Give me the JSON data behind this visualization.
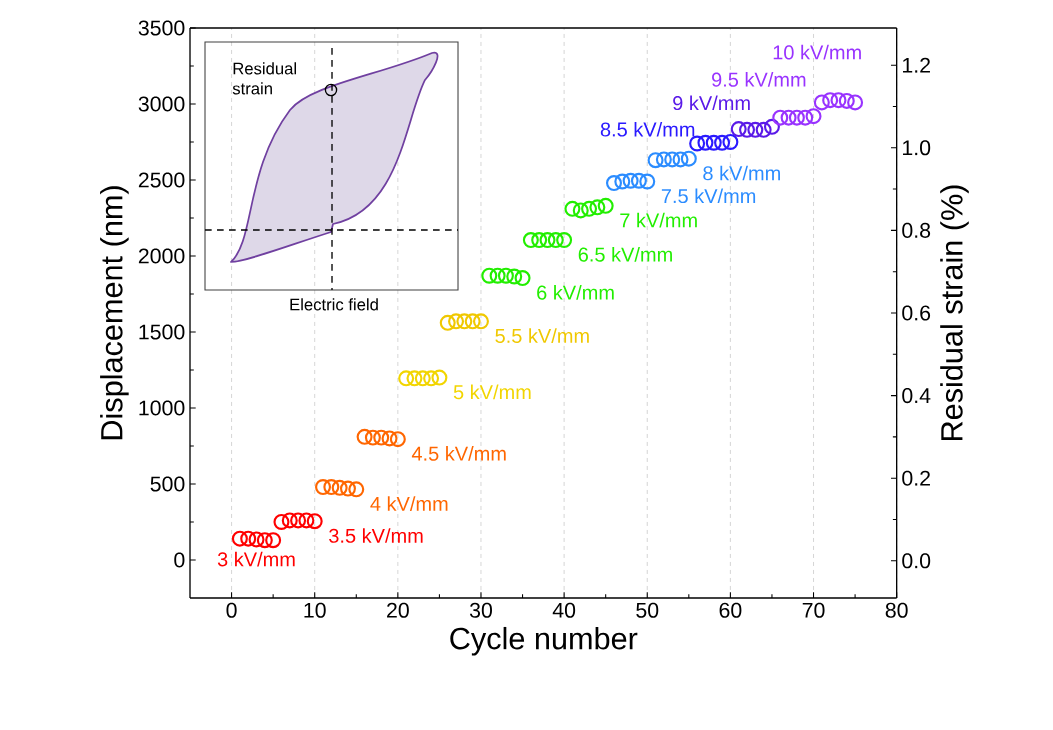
{
  "chart_data": {
    "type": "scatter",
    "xlabel": "Cycle number",
    "ylabel": "Displacement (nm)",
    "y2label": "Residual strain (%)",
    "xlim": [
      -5,
      80
    ],
    "xticks": [
      0,
      10,
      20,
      30,
      40,
      50,
      60,
      70,
      80
    ],
    "ylim": [
      -250,
      3500
    ],
    "yticks": [
      0,
      500,
      1000,
      1500,
      2000,
      2500,
      3000,
      3500
    ],
    "y2lim": [
      -0.09,
      1.29
    ],
    "y2ticks": [
      {
        "value": 0,
        "label": "0.0"
      },
      {
        "value": 0.2,
        "label": "0.2"
      },
      {
        "value": 0.4,
        "label": "0.4"
      },
      {
        "value": 0.6,
        "label": "0.6"
      },
      {
        "value": 0.8,
        "label": "0.8"
      },
      {
        "value": 1.0,
        "label": "1.0"
      },
      {
        "value": 1.2,
        "label": "1.2"
      }
    ],
    "grid": "x",
    "legend": false,
    "marker": "circle",
    "annotations": [
      "Residual strain",
      "Electric field"
    ],
    "series": [
      {
        "name": "3 kV/mm",
        "color": "#ff0000",
        "x": [
          1,
          2,
          3,
          4,
          5
        ],
        "values": [
          140,
          140,
          135,
          130,
          130
        ]
      },
      {
        "name": "3.5 kV/mm",
        "color": "#ff0000",
        "x": [
          6,
          7,
          8,
          9,
          10
        ],
        "values": [
          250,
          260,
          260,
          260,
          255
        ]
      },
      {
        "name": "4 kV/mm",
        "color": "#ff6600",
        "x": [
          11,
          12,
          13,
          14,
          15
        ],
        "values": [
          480,
          480,
          475,
          470,
          465
        ]
      },
      {
        "name": "4.5 kV/mm",
        "color": "#ff6600",
        "x": [
          16,
          17,
          18,
          19,
          20
        ],
        "values": [
          810,
          805,
          805,
          800,
          795
        ]
      },
      {
        "name": "5 kV/mm",
        "color": "#f2d500",
        "x": [
          21,
          22,
          23,
          24,
          25
        ],
        "values": [
          1195,
          1195,
          1195,
          1195,
          1200
        ]
      },
      {
        "name": "5.5 kV/mm",
        "color": "#f0c800",
        "x": [
          26,
          27,
          28,
          29,
          30
        ],
        "values": [
          1560,
          1570,
          1570,
          1570,
          1570
        ]
      },
      {
        "name": "6 kV/mm",
        "color": "#22ee00",
        "x": [
          31,
          32,
          33,
          34,
          35
        ],
        "values": [
          1870,
          1870,
          1870,
          1865,
          1855
        ]
      },
      {
        "name": "6.5 kV/mm",
        "color": "#22ee00",
        "x": [
          36,
          37,
          38,
          39,
          40
        ],
        "values": [
          2105,
          2105,
          2105,
          2105,
          2105
        ]
      },
      {
        "name": "7 kV/mm",
        "color": "#22ee00",
        "x": [
          41,
          42,
          43,
          44,
          45
        ],
        "values": [
          2310,
          2300,
          2310,
          2320,
          2330
        ]
      },
      {
        "name": "7.5 kV/mm",
        "color": "#2b8cff",
        "x": [
          46,
          47,
          48,
          49,
          50
        ],
        "values": [
          2480,
          2490,
          2495,
          2495,
          2490
        ]
      },
      {
        "name": "8 kV/mm",
        "color": "#2b8cff",
        "x": [
          51,
          52,
          53,
          54,
          55
        ],
        "values": [
          2630,
          2635,
          2635,
          2635,
          2640
        ]
      },
      {
        "name": "8.5 kV/mm",
        "color": "#2a1aff",
        "x": [
          56,
          57,
          58,
          59,
          60
        ],
        "values": [
          2740,
          2745,
          2745,
          2745,
          2750
        ]
      },
      {
        "name": "9 kV/mm",
        "color": "#5a1ae8",
        "x": [
          61,
          62,
          63,
          64,
          65
        ],
        "values": [
          2835,
          2830,
          2830,
          2830,
          2850
        ]
      },
      {
        "name": "9.5 kV/mm",
        "color": "#9933ff",
        "x": [
          66,
          67,
          68,
          69,
          70
        ],
        "values": [
          2910,
          2910,
          2910,
          2910,
          2920
        ]
      },
      {
        "name": "10 kV/mm",
        "color": "#9933ff",
        "x": [
          71,
          72,
          73,
          74,
          75
        ],
        "values": [
          3010,
          3025,
          3025,
          3020,
          3010
        ]
      }
    ]
  }
}
